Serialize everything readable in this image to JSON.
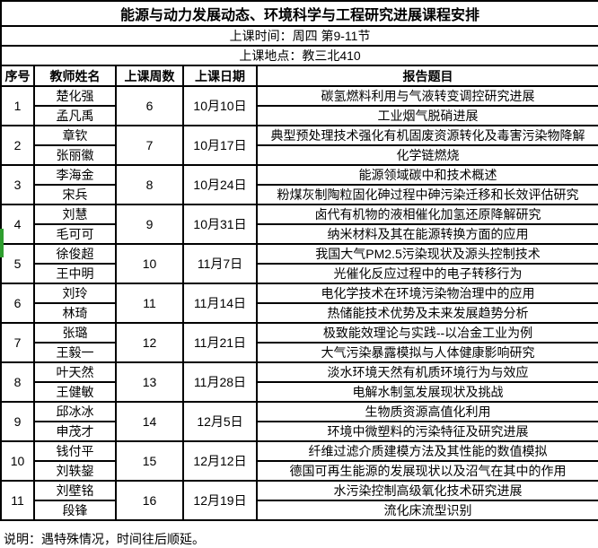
{
  "title": "能源与动力发展动态、环境科学与工程研究进展课程安排",
  "meta": {
    "time": "上课时间：周四 第9-11节",
    "location": "上课地点：教三北410"
  },
  "columns": {
    "no": "序号",
    "teacher": "教师姓名",
    "weeks": "上课周数",
    "date": "上课日期",
    "topic": "报告题目"
  },
  "rows": [
    {
      "no": "1",
      "teachers": [
        "楚化强",
        "孟凡禹"
      ],
      "weeks": "6",
      "date": "10月10日",
      "topics": [
        "碳氢燃料利用与气液转变调控研究进展",
        "工业烟气脱硝进展"
      ]
    },
    {
      "no": "2",
      "teachers": [
        "章钦",
        "张丽徽"
      ],
      "weeks": "7",
      "date": "10月17日",
      "topics": [
        "典型预处理技术强化有机固废资源转化及毒害污染物降解",
        "化学链燃烧"
      ]
    },
    {
      "no": "3",
      "teachers": [
        "李海金",
        "宋兵"
      ],
      "weeks": "8",
      "date": "10月24日",
      "topics": [
        "能源领域碳中和技术概述",
        "粉煤灰制陶粒固化砷过程中砷污染迁移和长效评估研究"
      ]
    },
    {
      "no": "4",
      "teachers": [
        "刘慧",
        "毛可可"
      ],
      "weeks": "9",
      "date": "10月31日",
      "topics": [
        "卤代有机物的液相催化加氢还原降解研究",
        "纳米材料及其在能源转换方面的应用"
      ]
    },
    {
      "no": "5",
      "teachers": [
        "徐俊超",
        "王中明"
      ],
      "weeks": "10",
      "date": "11月7日",
      "topics": [
        "我国大气PM2.5污染现状及源头控制技术",
        "光催化反应过程中的电子转移行为"
      ]
    },
    {
      "no": "6",
      "teachers": [
        "刘玲",
        "林琦"
      ],
      "weeks": "11",
      "date": "11月14日",
      "topics": [
        "电化学技术在环境污染物治理中的应用",
        "热储能技术优势及未来发展趋势分析"
      ]
    },
    {
      "no": "7",
      "teachers": [
        "张璐",
        "王毅一"
      ],
      "weeks": "12",
      "date": "11月21日",
      "topics": [
        "极致能效理论与实践--以冶金工业为例",
        "大气污染暴露模拟与人体健康影响研究"
      ]
    },
    {
      "no": "8",
      "teachers": [
        "叶天然",
        "王健敏"
      ],
      "weeks": "13",
      "date": "11月28日",
      "topics": [
        "淡水环境天然有机质环境行为与效应",
        "电解水制氢发展现状及挑战"
      ]
    },
    {
      "no": "9",
      "teachers": [
        "邱冰冰",
        "申茂才"
      ],
      "weeks": "14",
      "date": "12月5日",
      "topics": [
        "生物质资源高值化利用",
        "环境中微塑料的污染特征及研究进展"
      ]
    },
    {
      "no": "10",
      "teachers": [
        "钱付平",
        "刘轶鋆"
      ],
      "weeks": "15",
      "date": "12月12日",
      "topics": [
        "纤维过滤介质建模方法及其性能的数值模拟",
        "德国可再生能源的发展现状以及沼气在其中的作用"
      ]
    },
    {
      "no": "11",
      "teachers": [
        "刘壁铭",
        "段锋"
      ],
      "weeks": "16",
      "date": "12月19日",
      "topics": [
        "水污染控制高级氧化技术研究进展",
        "流化床流型识别"
      ]
    }
  ],
  "note": "说明：遇特殊情况，时间往后顺延。",
  "colors": {
    "border": "#000000",
    "background": "#ffffff",
    "highlight_green": "#2f9e2f"
  }
}
